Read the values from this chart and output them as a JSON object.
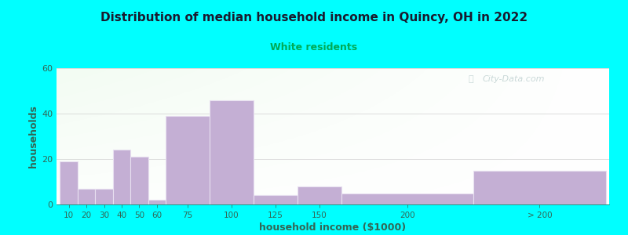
{
  "title": "Distribution of median household income in Quincy, OH in 2022",
  "subtitle": "White residents",
  "xlabel": "household income ($1000)",
  "ylabel": "households",
  "background_color": "#00FFFF",
  "bar_color": "#c4afd4",
  "bar_edge_color": "#e8e0f0",
  "title_color": "#1a1a2e",
  "subtitle_color": "#00aa55",
  "ylabel_color": "#336655",
  "xlabel_color": "#336655",
  "tick_color": "#336655",
  "gridline_color": "#d0d0d0",
  "ylim": [
    0,
    60
  ],
  "yticks": [
    0,
    20,
    40,
    60
  ],
  "bar_labels": [
    "10",
    "20",
    "30",
    "40",
    "50",
    "60",
    "75",
    "100",
    "125",
    "150",
    "200",
    "> 200"
  ],
  "bar_values": [
    19,
    7,
    7,
    24,
    21,
    2,
    39,
    46,
    4,
    8,
    5,
    15
  ],
  "bar_lefts": [
    0,
    10,
    20,
    30,
    40,
    50,
    60,
    85,
    110,
    135,
    160,
    235
  ],
  "bar_widths": [
    10,
    10,
    10,
    10,
    10,
    10,
    25,
    25,
    25,
    25,
    75,
    75
  ],
  "watermark": "City-Data.com"
}
